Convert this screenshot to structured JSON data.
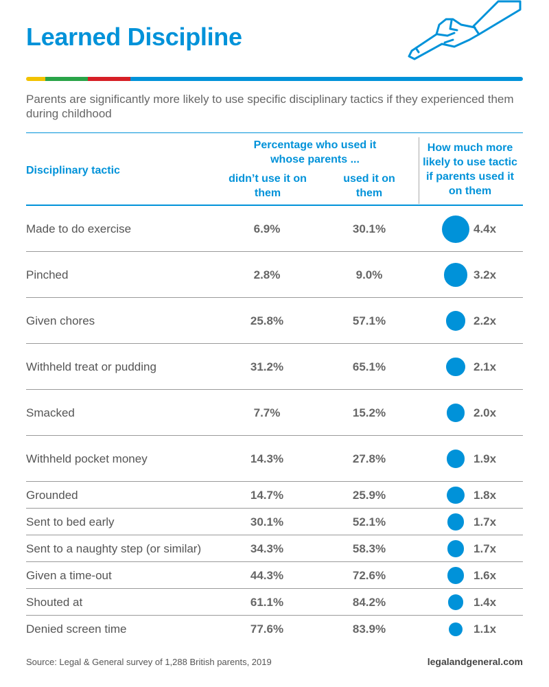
{
  "title": "Learned Discipline",
  "subtitle": "Parents are significantly more likely to use specific disciplinary tactics if they experienced them during childhood",
  "colors": {
    "accent": "#0092d9",
    "bar": [
      "#f2c200",
      "#2aa448",
      "#d61f26",
      "#0092d9"
    ]
  },
  "header": {
    "tactic": "Disciplinary tactic",
    "group": "Percentage who used it whose parents ...",
    "col_didnt": "didn’t use it on them",
    "col_used": "used it on them",
    "col_ratio": "How much more likely to use tactic if parents used it on them"
  },
  "chart_data": {
    "type": "table",
    "columns": [
      "Disciplinary tactic",
      "didn’t use it on them",
      "used it on them",
      "How much more likely to use tactic if parents used it on them"
    ],
    "rows": [
      {
        "tactic": "Made to do exercise",
        "didnt": "6.9%",
        "used": "30.1%",
        "ratio": "4.4x",
        "ratio_value": 4.4
      },
      {
        "tactic": "Pinched",
        "didnt": "2.8%",
        "used": "9.0%",
        "ratio": "3.2x",
        "ratio_value": 3.2
      },
      {
        "tactic": "Given chores",
        "didnt": "25.8%",
        "used": "57.1%",
        "ratio": "2.2x",
        "ratio_value": 2.2
      },
      {
        "tactic": "Withheld treat or pudding",
        "didnt": "31.2%",
        "used": "65.1%",
        "ratio": "2.1x",
        "ratio_value": 2.1
      },
      {
        "tactic": "Smacked",
        "didnt": "7.7%",
        "used": "15.2%",
        "ratio": "2.0x",
        "ratio_value": 2.0
      },
      {
        "tactic": "Withheld pocket money",
        "didnt": "14.3%",
        "used": "27.8%",
        "ratio": "1.9x",
        "ratio_value": 1.9
      },
      {
        "tactic": "Grounded",
        "didnt": "14.7%",
        "used": "25.9%",
        "ratio": "1.8x",
        "ratio_value": 1.8
      },
      {
        "tactic": "Sent to bed early",
        "didnt": "30.1%",
        "used": "52.1%",
        "ratio": "1.7x",
        "ratio_value": 1.7
      },
      {
        "tactic": "Sent to a naughty step (or similar)",
        "didnt": "34.3%",
        "used": "58.3%",
        "ratio": "1.7x",
        "ratio_value": 1.7
      },
      {
        "tactic": "Given a time-out",
        "didnt": "44.3%",
        "used": "72.6%",
        "ratio": "1.6x",
        "ratio_value": 1.6
      },
      {
        "tactic": "Shouted at",
        "didnt": "61.1%",
        "used": "84.2%",
        "ratio": "1.4x",
        "ratio_value": 1.4
      },
      {
        "tactic": "Denied screen time",
        "didnt": "77.6%",
        "used": "83.9%",
        "ratio": "1.1x",
        "ratio_value": 1.1
      }
    ]
  },
  "footer": {
    "source": "Source: Legal & General survey of 1,288 British parents, 2019",
    "site": "legalandgeneral.com"
  },
  "icons": {
    "hand": "pointing-hand-icon"
  }
}
